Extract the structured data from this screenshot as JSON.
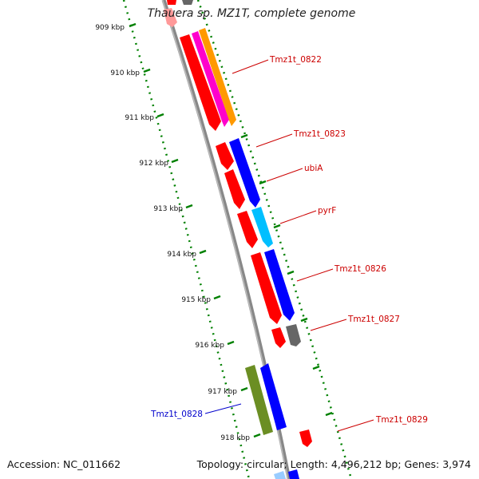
{
  "title": "Thauera sp. MZ1T, complete genome",
  "accession": "Accession: NC_011662",
  "topology": "Topology: circular; Length: 4,496,212 bp; Genes: 3,974",
  "colors": {
    "backbone": "#888888",
    "scale_dots": "#008000",
    "gene_red": "#ff0000",
    "gene_blue": "#0000ff",
    "gene_cyan": "#00bfff",
    "gene_orange": "#ff9900",
    "gene_magenta": "#ff00cc",
    "gene_olive": "#6b8e23",
    "gene_gray": "#666666",
    "label_red": "#cc0000",
    "label_blue": "#0000cc"
  },
  "scale": {
    "unit": "kbp",
    "ticks": [
      "909 kbp",
      "910 kbp",
      "911 kbp",
      "912 kbp",
      "913 kbp",
      "914 kbp",
      "915 kbp",
      "916 kbp",
      "917 kbp",
      "918 kbp"
    ]
  },
  "features": [
    {
      "label": "Tmz1t_0822",
      "side": "right",
      "color": "red"
    },
    {
      "label": "Tmz1t_0823",
      "side": "right",
      "color": "red"
    },
    {
      "label": "ubiA",
      "side": "right",
      "color": "red"
    },
    {
      "label": "pyrF",
      "side": "right",
      "color": "red"
    },
    {
      "label": "Tmz1t_0826",
      "side": "right",
      "color": "red"
    },
    {
      "label": "Tmz1t_0827",
      "side": "right",
      "color": "red"
    },
    {
      "label": "Tmz1t_0828",
      "side": "left",
      "color": "blue"
    },
    {
      "label": "Tmz1t_0829",
      "side": "right",
      "color": "red"
    }
  ]
}
